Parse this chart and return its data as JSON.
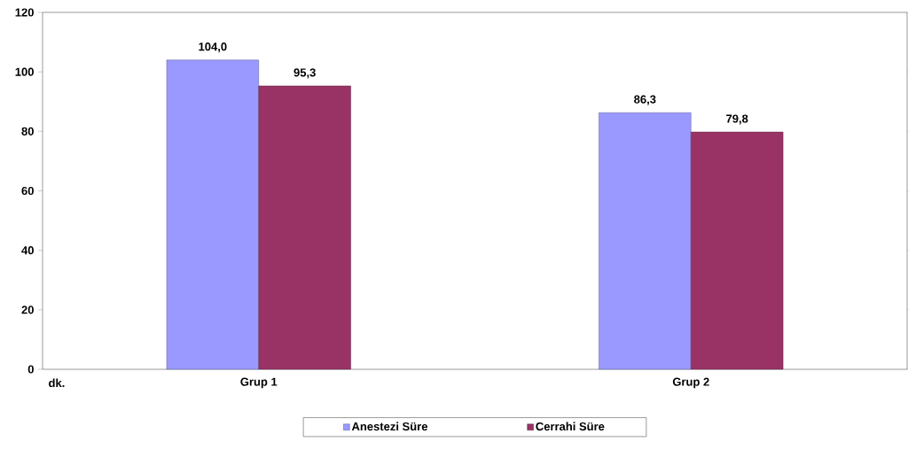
{
  "chart_data": {
    "type": "bar",
    "annotations": [
      "dk."
    ],
    "categories": [
      "Grup 1",
      "Grup 2"
    ],
    "series": [
      {
        "name": "Anestezi Süre",
        "color": "#9999ff",
        "values": [
          104.0,
          86.3
        ],
        "value_labels": [
          "104,0",
          "86,3"
        ]
      },
      {
        "name": "Cerrahi Süre",
        "color": "#993366",
        "values": [
          95.3,
          79.8
        ],
        "value_labels": [
          "95,3",
          "79,8"
        ]
      }
    ],
    "ylim": [
      0,
      120
    ],
    "yticks": [
      0,
      20,
      40,
      60,
      80,
      100,
      120
    ],
    "grid": false,
    "legend": "bottom"
  }
}
